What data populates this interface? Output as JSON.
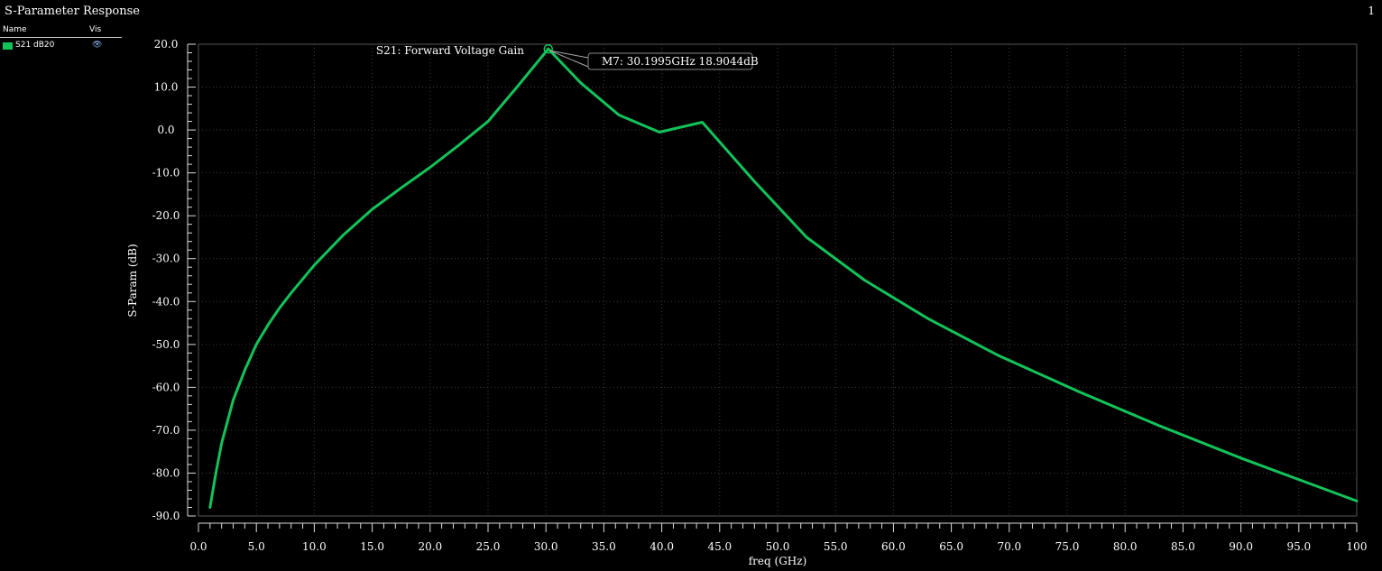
{
  "window": {
    "title": "S-Parameter Response",
    "page": "1"
  },
  "legend": {
    "headers": {
      "name": "Name",
      "vis": "Vis"
    },
    "items": [
      {
        "label": "S21 dB20",
        "color": "#12c35a",
        "icon": "eye-icon"
      }
    ]
  },
  "chart_data": {
    "type": "line",
    "title": "S21: Forward Voltage Gain",
    "xlabel": "freq (GHz)",
    "ylabel": "S-Param (dB)",
    "xlim": [
      0,
      100
    ],
    "ylim": [
      -90,
      20
    ],
    "x_ticks": [
      0,
      5,
      10,
      15,
      20,
      25,
      30,
      35,
      40,
      45,
      50,
      55,
      60,
      65,
      70,
      75,
      80,
      85,
      90,
      95,
      100
    ],
    "x_tick_labels": [
      "0.0",
      "5.0",
      "10.0",
      "15.0",
      "20.0",
      "25.0",
      "30.0",
      "35.0",
      "40.0",
      "45.0",
      "50.0",
      "55.0",
      "60.0",
      "65.0",
      "70.0",
      "75.0",
      "80.0",
      "85.0",
      "90.0",
      "95.0",
      "100"
    ],
    "y_ticks": [
      20,
      10,
      0,
      -10,
      -20,
      -30,
      -40,
      -50,
      -60,
      -70,
      -80,
      -90
    ],
    "y_tick_labels": [
      "20.0",
      "10.0",
      "0.0",
      "-10.0",
      "-20.0",
      "-30.0",
      "-40.0",
      "-50.0",
      "-60.0",
      "-70.0",
      "-80.0",
      "-90.0"
    ],
    "grid": true,
    "background": "#000000",
    "series": [
      {
        "name": "S21 dB20",
        "color": "#12c35a",
        "x": [
          1,
          1.5,
          2,
          3,
          4,
          5,
          6,
          7,
          8,
          10,
          12.5,
          15,
          17.5,
          20,
          22.5,
          25,
          27.5,
          30.2,
          33,
          36.3,
          39.8,
          43.5,
          48,
          52.5,
          57.5,
          63,
          69,
          76,
          83,
          90,
          95,
          100
        ],
        "y": [
          -88,
          -80,
          -73,
          -63,
          -56,
          -50,
          -45.5,
          -41.5,
          -38,
          -31.5,
          -24.5,
          -18.5,
          -13.5,
          -8.7,
          -3.5,
          2,
          10,
          18.9,
          11,
          3.5,
          -0.5,
          1.8,
          -12,
          -25,
          -35,
          -44,
          -52.5,
          -61,
          -69,
          -76.5,
          -81.5,
          -86.5
        ]
      }
    ],
    "markers": [
      {
        "label": "M7: 30.1995GHz 18.9044dB",
        "x": 30.1995,
        "y": 18.9044
      }
    ]
  }
}
